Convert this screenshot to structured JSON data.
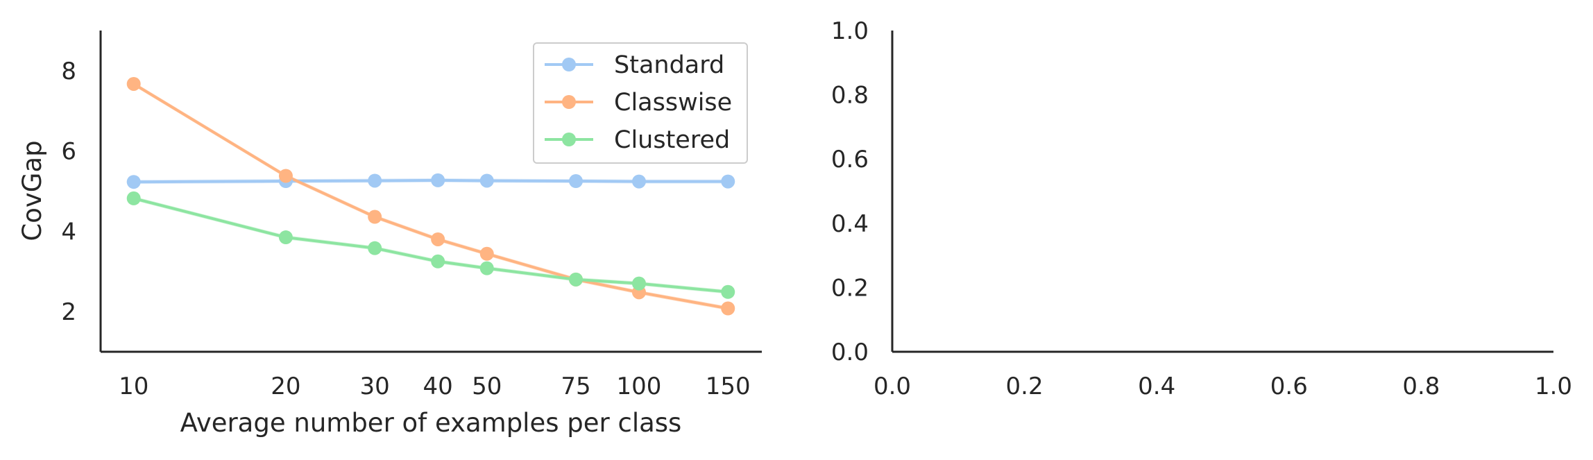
{
  "chart_data": [
    {
      "type": "line",
      "xscale": "log",
      "xlabel": "Average number of examples per class",
      "ylabel": "CovGap",
      "xlim": [
        8.6,
        175
      ],
      "ylim": [
        1,
        9
      ],
      "x": [
        10,
        20,
        30,
        40,
        50,
        75,
        100,
        150
      ],
      "xtick_labels": [
        "10",
        "20",
        "30",
        "40",
        "50",
        "75",
        "100",
        "150"
      ],
      "yticks": [
        2,
        4,
        6,
        8
      ],
      "grid": false,
      "legend_position": "top-right",
      "series": [
        {
          "name": "Standard",
          "color": "#a1c9f4",
          "values": [
            5.23,
            5.25,
            5.26,
            5.27,
            5.26,
            5.25,
            5.24,
            5.24
          ]
        },
        {
          "name": "Classwise",
          "color": "#ffb482",
          "values": [
            7.67,
            5.38,
            4.36,
            3.8,
            3.44,
            2.8,
            2.48,
            2.08
          ]
        },
        {
          "name": "Clustered",
          "color": "#8de5a1",
          "values": [
            4.82,
            3.85,
            3.58,
            3.25,
            3.08,
            2.8,
            2.7,
            2.49
          ]
        }
      ]
    },
    {
      "type": "line",
      "xlim": [
        0,
        1
      ],
      "ylim": [
        0,
        1
      ],
      "xtick_labels": [
        "0.0",
        "0.2",
        "0.4",
        "0.6",
        "0.8",
        "1.0"
      ],
      "ytick_labels": [
        "0.0",
        "0.2",
        "0.4",
        "0.6",
        "0.8",
        "1.0"
      ],
      "series": []
    }
  ]
}
